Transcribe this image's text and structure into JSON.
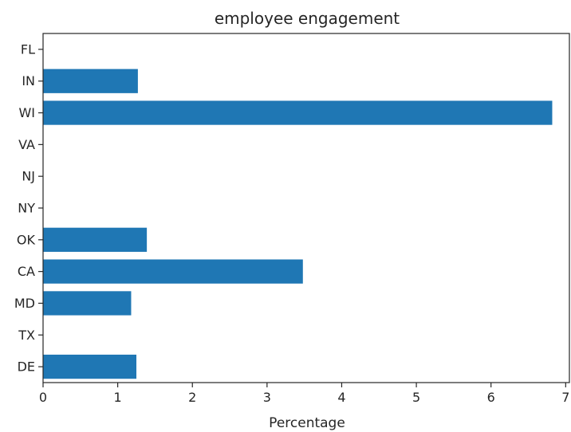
{
  "chart_data": {
    "type": "bar",
    "orientation": "horizontal",
    "title": "employee engagement",
    "xlabel": "Percentage",
    "ylabel": "",
    "categories": [
      "DE",
      "TX",
      "MD",
      "CA",
      "OK",
      "NY",
      "NJ",
      "VA",
      "WI",
      "IN",
      "FL"
    ],
    "values": [
      1.25,
      0,
      1.18,
      3.48,
      1.39,
      0,
      0,
      0,
      6.82,
      1.27,
      0
    ],
    "xlim": [
      0,
      7.05
    ],
    "xticks": [
      "0",
      "1",
      "2",
      "3",
      "4",
      "5",
      "6",
      "7"
    ],
    "grid": false,
    "legend": "none",
    "colors": {
      "bar": "#1f77b4",
      "axis": "#262626",
      "background": "#ffffff"
    }
  }
}
